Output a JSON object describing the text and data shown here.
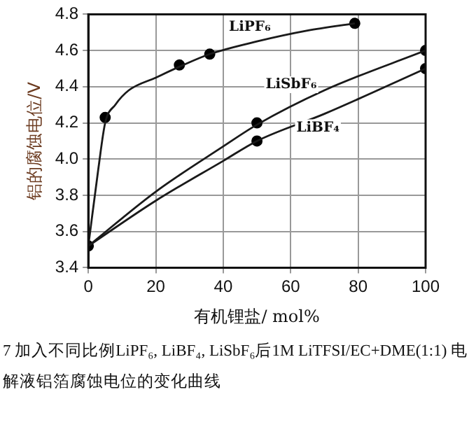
{
  "chart_data": {
    "type": "line",
    "xlabel": "有机锂盐/ mol%",
    "ylabel": "铝的腐蚀电位/V",
    "xlim": [
      0,
      100
    ],
    "xticks": [
      0,
      20,
      40,
      60,
      80,
      100
    ],
    "ylim": [
      3.4,
      4.8
    ],
    "yticks": [
      3.4,
      3.6,
      3.8,
      {
        "value": 4,
        "label": "4.0"
      },
      4.2,
      4.4,
      4.6,
      4.8
    ],
    "grid": true,
    "legend": false,
    "series": [
      {
        "name": "LiPF₆",
        "color": "#1a1a1a",
        "marker": "none",
        "x": [
          0,
          3,
          5,
          8,
          12,
          20,
          27,
          36,
          50,
          65,
          79
        ],
        "values": [
          3.52,
          3.95,
          4.2,
          4.3,
          4.38,
          4.45,
          4.51,
          4.58,
          4.65,
          4.71,
          4.75
        ]
      },
      {
        "name": "LiSbF₆",
        "color": "#1a1a1a",
        "marker": "none",
        "x": [
          0,
          20,
          40,
          50,
          70,
          100
        ],
        "values": [
          3.52,
          3.82,
          4.07,
          4.19,
          4.38,
          4.6
        ]
      },
      {
        "name": "LiBF₄",
        "color": "#1a1a1a",
        "marker": "none",
        "x": [
          0,
          20,
          40,
          50,
          70,
          100
        ],
        "values": [
          3.52,
          3.77,
          3.99,
          4.1,
          4.25,
          4.5
        ]
      },
      {
        "type": "scatter",
        "color": "#000000",
        "marker": "circle",
        "x": [
          0,
          5,
          27,
          36,
          79
        ],
        "values": [
          3.52,
          4.23,
          4.52,
          4.58,
          4.75
        ]
      },
      {
        "type": "scatter",
        "color": "#000000",
        "marker": "circle",
        "x": [
          50,
          100
        ],
        "values": [
          4.2,
          4.6
        ]
      },
      {
        "type": "scatter",
        "color": "#000000",
        "marker": "circle",
        "x": [
          50,
          100
        ],
        "values": [
          4.1,
          4.5
        ]
      }
    ],
    "annotations": [
      "7  加入不同比例LiPF₆, LiBF₄, LiSbF₆后1M LiTFSI/EC+DME(1:1) 电解液铝箔腐蚀电位的变化曲线"
    ]
  }
}
